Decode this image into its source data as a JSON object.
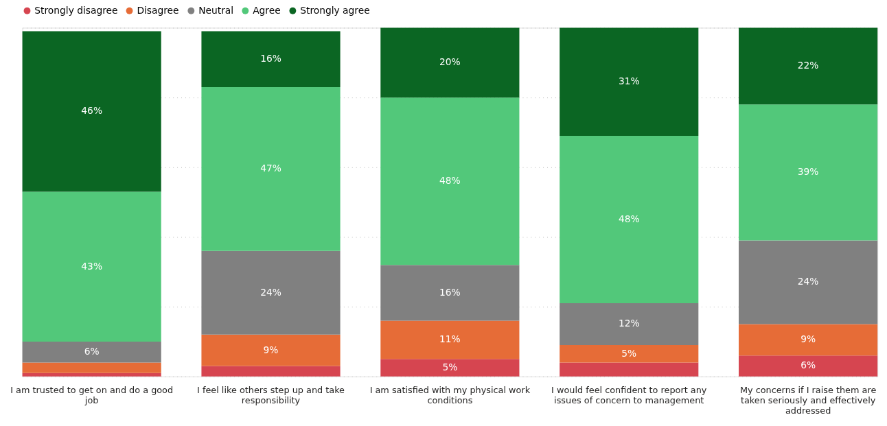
{
  "chart_data": {
    "type": "bar",
    "stacked": true,
    "categories": [
      "I am trusted to get on and do a good job",
      "I feel like others step up and take responsibility",
      "I am satisfied with my physical work conditions",
      "I would feel confident to report any issues of concern to management",
      "My concerns if I raise them are taken seriously and effectively addressed"
    ],
    "series": [
      {
        "name": "Strongly disagree",
        "color": "#d64550",
        "values": [
          1,
          3,
          5,
          4,
          6
        ],
        "value_labels": [
          null,
          null,
          "5%",
          null,
          "6%"
        ]
      },
      {
        "name": "Disagree",
        "color": "#e66c37",
        "values": [
          3,
          9,
          11,
          5,
          9
        ],
        "value_labels": [
          null,
          "9%",
          "11%",
          "5%",
          "9%"
        ]
      },
      {
        "name": "Neutral",
        "color": "#808080",
        "values": [
          6,
          24,
          16,
          12,
          24
        ],
        "value_labels": [
          "6%",
          "24%",
          "16%",
          "12%",
          "24%"
        ]
      },
      {
        "name": "Agree",
        "color": "#52c87a",
        "values": [
          43,
          47,
          48,
          48,
          39
        ],
        "value_labels": [
          "43%",
          "47%",
          "48%",
          "48%",
          "39%"
        ]
      },
      {
        "name": "Strongly agree",
        "color": "#0b6623",
        "values": [
          46,
          16,
          20,
          31,
          22
        ],
        "value_labels": [
          "46%",
          "16%",
          "20%",
          "31%",
          "22%"
        ]
      }
    ],
    "ylim": [
      0,
      100
    ],
    "yticks": [
      {
        "value": 0,
        "label": null
      },
      {
        "value": 20,
        "label": null
      },
      {
        "value": 40,
        "label": null
      },
      {
        "value": 60,
        "label": null
      },
      {
        "value": 80,
        "label": null
      },
      {
        "value": 100,
        "label": null
      }
    ],
    "tick_labels": "x",
    "grid": "y",
    "legend": "top"
  }
}
